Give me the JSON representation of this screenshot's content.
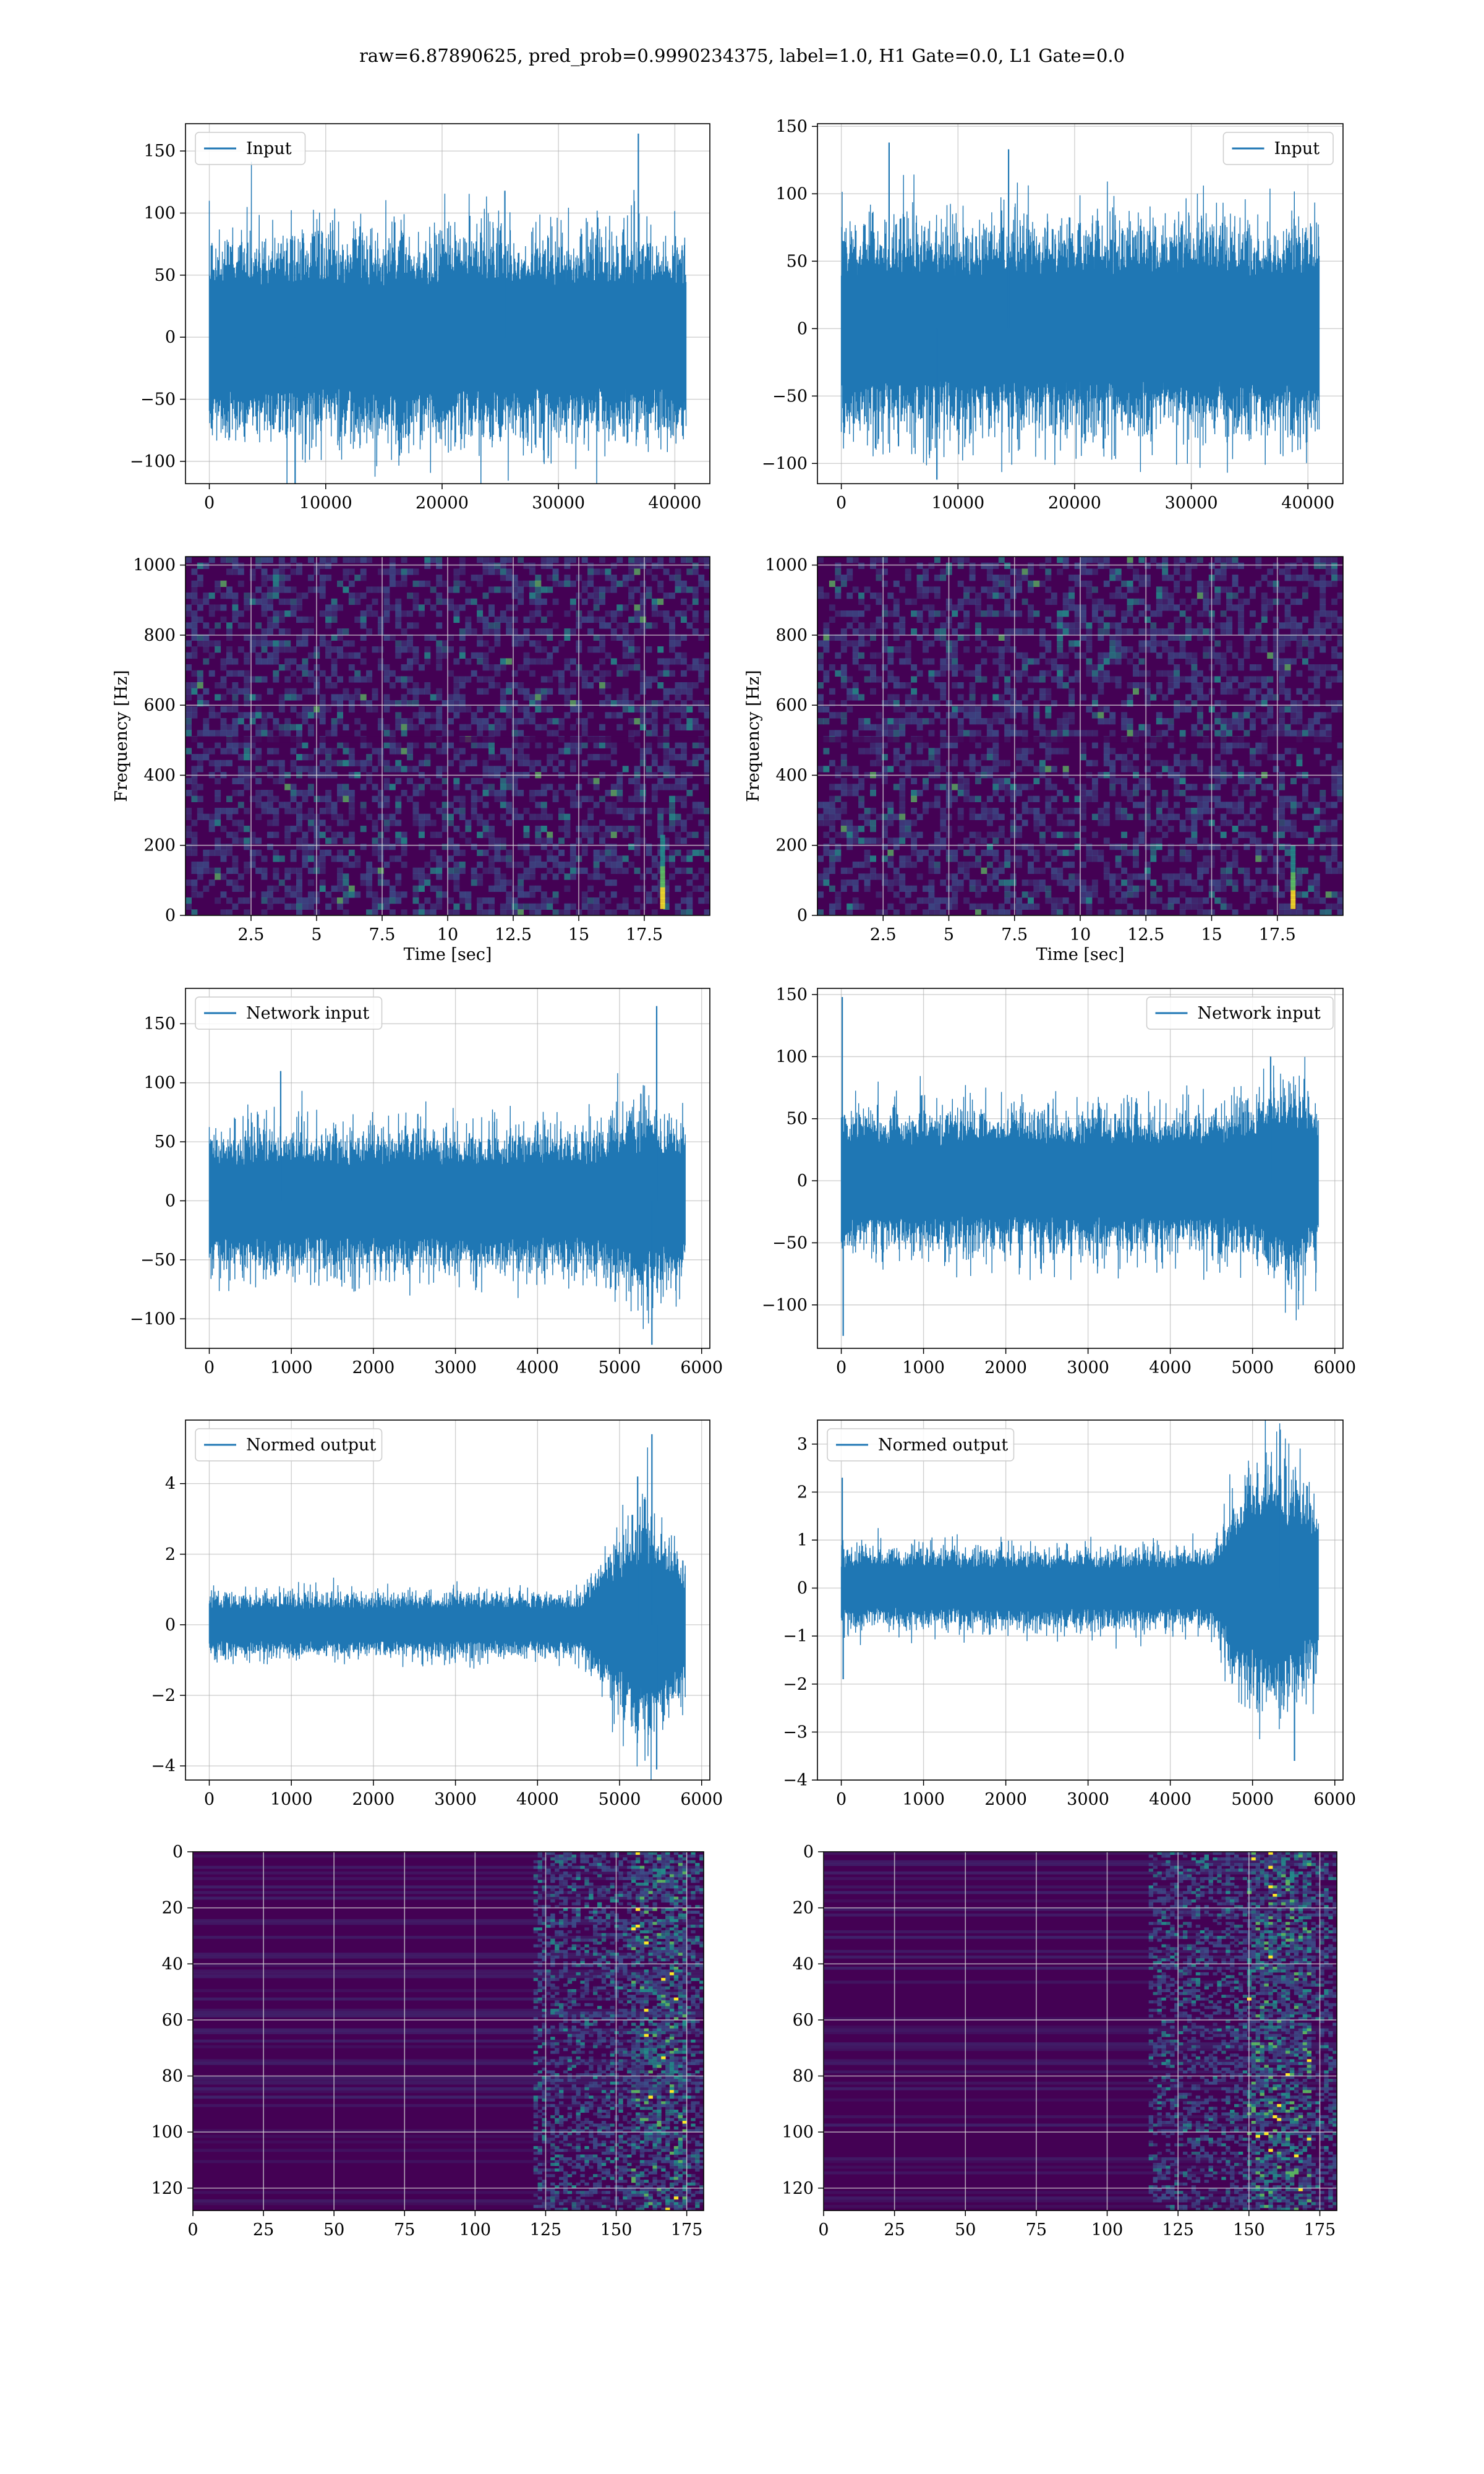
{
  "figure": {
    "title": "raw=6.87890625, pred_prob=0.9990234375, label=1.0, H1 Gate=0.0, L1 Gate=0.0",
    "colors": {
      "line": "#1f77b4",
      "grid": "#b0b0b0",
      "viridis_low": "#440154",
      "viridis_mid": "#3b528b",
      "viridis_teal": "#21918c",
      "viridis_green": "#5ec962",
      "viridis_high": "#fde725"
    }
  },
  "chart_data": [
    {
      "id": "h1-input",
      "type": "line",
      "legend": "Input",
      "legend_loc": "upper-left",
      "xlim": [
        -2048,
        43008
      ],
      "ylim": [
        -118,
        172
      ],
      "xticks": [
        0,
        10000,
        20000,
        30000,
        40000
      ],
      "yticks": [
        -100,
        -50,
        0,
        50,
        100,
        150
      ],
      "x_range": [
        0,
        40960
      ],
      "signal": {
        "envelope": [
          [
            0,
            55
          ],
          [
            0.5,
            55
          ],
          [
            1,
            55
          ]
        ],
        "spikes": [
          [
            0.9,
            164
          ],
          [
            0.18,
            -118
          ],
          [
            0.62,
            118
          ]
        ]
      },
      "grid": true
    },
    {
      "id": "l1-input",
      "type": "line",
      "legend": "Input",
      "legend_loc": "upper-right",
      "xlim": [
        -2048,
        43008
      ],
      "ylim": [
        -115,
        152
      ],
      "xticks": [
        0,
        10000,
        20000,
        30000,
        40000
      ],
      "yticks": [
        -100,
        -50,
        0,
        50,
        100,
        150
      ],
      "x_range": [
        0,
        40960
      ],
      "signal": {
        "envelope": [
          [
            0,
            52
          ],
          [
            0.5,
            52
          ],
          [
            1,
            52
          ]
        ],
        "spikes": [
          [
            0.1,
            138
          ],
          [
            0.35,
            133
          ],
          [
            0.2,
            -112
          ]
        ]
      },
      "grid": true
    },
    {
      "id": "h1-spectrogram",
      "type": "heatmap",
      "colormap": "viridis",
      "xlim": [
        0,
        20
      ],
      "ylim": [
        0,
        1024
      ],
      "xticks": [
        2.5,
        5.0,
        7.5,
        10.0,
        12.5,
        15.0,
        17.5
      ],
      "yticks": [
        0,
        200,
        400,
        600,
        800,
        1000
      ],
      "xlabel": "Time [sec]",
      "ylabel": "Frequency [Hz]",
      "events": [
        {
          "t": 18.2,
          "f_low": 20,
          "f_high": 230
        }
      ],
      "grid": true
    },
    {
      "id": "l1-spectrogram",
      "type": "heatmap",
      "colormap": "viridis",
      "xlim": [
        0,
        20
      ],
      "ylim": [
        0,
        1024
      ],
      "xticks": [
        2.5,
        5.0,
        7.5,
        10.0,
        12.5,
        15.0,
        17.5
      ],
      "yticks": [
        0,
        200,
        400,
        600,
        800,
        1000
      ],
      "xlabel": "Time [sec]",
      "ylabel": "Frequency [Hz]",
      "events": [
        {
          "t": 18.1,
          "f_low": 20,
          "f_high": 200
        }
      ],
      "grid": true
    },
    {
      "id": "h1-network-input",
      "type": "line",
      "legend": "Network input",
      "legend_loc": "upper-left",
      "xlim": [
        -290,
        6100
      ],
      "ylim": [
        -125,
        180
      ],
      "xticks": [
        0,
        1000,
        2000,
        3000,
        4000,
        5000,
        6000
      ],
      "yticks": [
        -100,
        -50,
        0,
        50,
        100,
        150
      ],
      "x_range": [
        0,
        5800
      ],
      "signal": {
        "envelope": [
          [
            0,
            40
          ],
          [
            0.8,
            40
          ],
          [
            0.92,
            55
          ],
          [
            1,
            45
          ]
        ],
        "spikes": [
          [
            0.94,
            165
          ],
          [
            0.93,
            -122
          ],
          [
            0.15,
            110
          ]
        ]
      },
      "grid": true
    },
    {
      "id": "l1-network-input",
      "type": "line",
      "legend": "Network input",
      "legend_loc": "upper-right",
      "xlim": [
        -290,
        6100
      ],
      "ylim": [
        -135,
        155
      ],
      "xticks": [
        0,
        1000,
        2000,
        3000,
        4000,
        5000,
        6000
      ],
      "yticks": [
        -100,
        -50,
        0,
        50,
        100,
        150
      ],
      "x_range": [
        0,
        5800
      ],
      "signal": {
        "envelope": [
          [
            0,
            38
          ],
          [
            0.8,
            38
          ],
          [
            0.95,
            55
          ],
          [
            1,
            40
          ]
        ],
        "spikes": [
          [
            0.002,
            148
          ],
          [
            0.004,
            -125
          ],
          [
            0.9,
            100
          ]
        ]
      },
      "grid": true
    },
    {
      "id": "h1-normed-output",
      "type": "line",
      "legend": "Normed output",
      "legend_loc": "upper-left",
      "xlim": [
        -290,
        6100
      ],
      "ylim": [
        -4.4,
        5.8
      ],
      "xticks": [
        0,
        1000,
        2000,
        3000,
        4000,
        5000,
        6000
      ],
      "yticks": [
        -4,
        -2,
        0,
        2,
        4
      ],
      "x_range": [
        0,
        5800
      ],
      "signal": {
        "envelope": [
          [
            0,
            0.6
          ],
          [
            0.78,
            0.6
          ],
          [
            0.84,
            1.4
          ],
          [
            0.92,
            2.2
          ],
          [
            1,
            1.3
          ]
        ],
        "spikes": [
          [
            0.93,
            5.4
          ],
          [
            0.94,
            -4.1
          ],
          [
            0.9,
            4.2
          ]
        ]
      },
      "grid": true
    },
    {
      "id": "l1-normed-output",
      "type": "line",
      "legend": "Normed output",
      "legend_loc": "upper-left",
      "xlim": [
        -290,
        6100
      ],
      "ylim": [
        -4.0,
        3.5
      ],
      "xticks": [
        0,
        1000,
        2000,
        3000,
        4000,
        5000,
        6000
      ],
      "yticks": [
        -4,
        -3,
        -2,
        -1,
        0,
        1,
        2,
        3
      ],
      "x_range": [
        0,
        5800
      ],
      "signal": {
        "envelope": [
          [
            0,
            0.55
          ],
          [
            0.78,
            0.55
          ],
          [
            0.82,
            1.3
          ],
          [
            0.9,
            1.9
          ],
          [
            1,
            1.2
          ]
        ],
        "spikes": [
          [
            0.002,
            2.3
          ],
          [
            0.004,
            -1.9
          ],
          [
            0.92,
            3.3
          ],
          [
            0.95,
            -3.6
          ]
        ]
      },
      "grid": true
    },
    {
      "id": "h1-features",
      "type": "heatmap",
      "colormap": "viridis",
      "xlim": [
        0,
        181
      ],
      "ylim": [
        128,
        0
      ],
      "xticks": [
        0,
        25,
        50,
        75,
        100,
        125,
        150,
        175
      ],
      "yticks": [
        0,
        20,
        40,
        60,
        80,
        100,
        120
      ],
      "active_from": 120,
      "hot_band": [
        155,
        175
      ],
      "grid": true
    },
    {
      "id": "l1-features",
      "type": "heatmap",
      "colormap": "viridis",
      "xlim": [
        0,
        181
      ],
      "ylim": [
        128,
        0
      ],
      "xticks": [
        0,
        25,
        50,
        75,
        100,
        125,
        150,
        175
      ],
      "yticks": [
        0,
        20,
        40,
        60,
        80,
        100,
        120
      ],
      "active_from": 115,
      "hot_band": [
        150,
        172
      ],
      "grid": true
    }
  ]
}
